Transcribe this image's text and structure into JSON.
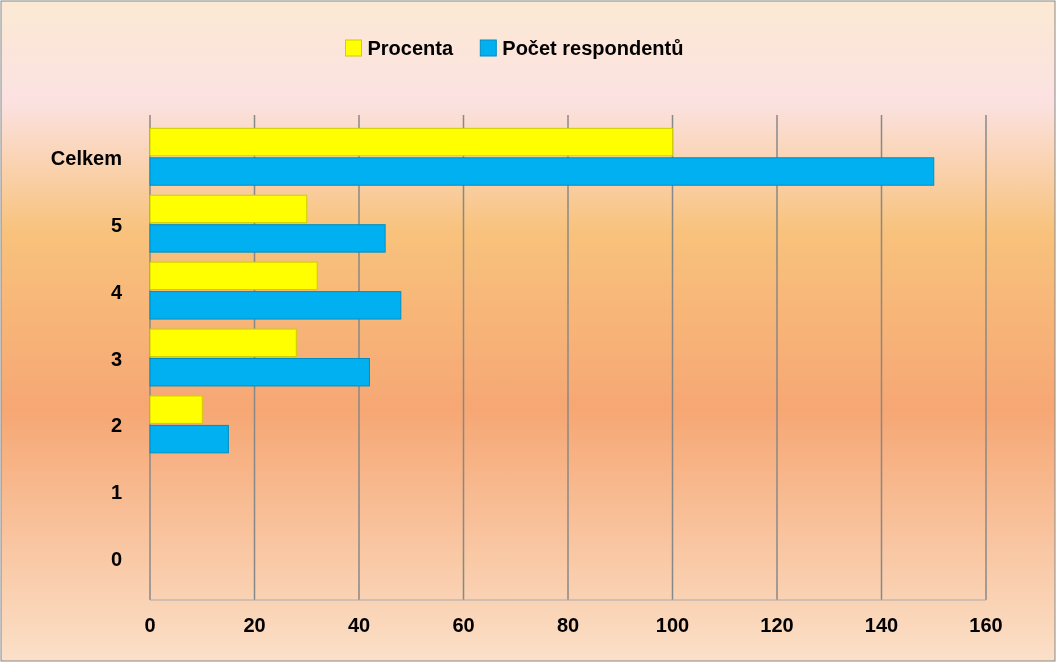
{
  "chart_data": {
    "type": "bar",
    "orientation": "horizontal",
    "categories": [
      "Celkem",
      "5",
      "4",
      "3",
      "2",
      "1",
      "0"
    ],
    "series": [
      {
        "name": "Procenta",
        "color": "#ffff00",
        "values": [
          100,
          30,
          32,
          28,
          10,
          0,
          0
        ]
      },
      {
        "name": "Počet respondentů",
        "color": "#00b0f0",
        "values": [
          150,
          45,
          48,
          42,
          15,
          0,
          0
        ]
      }
    ],
    "xlim": [
      0,
      160
    ],
    "xticks": [
      0,
      20,
      40,
      60,
      80,
      100,
      120,
      140,
      160
    ],
    "grid": "x",
    "legend": "top"
  }
}
